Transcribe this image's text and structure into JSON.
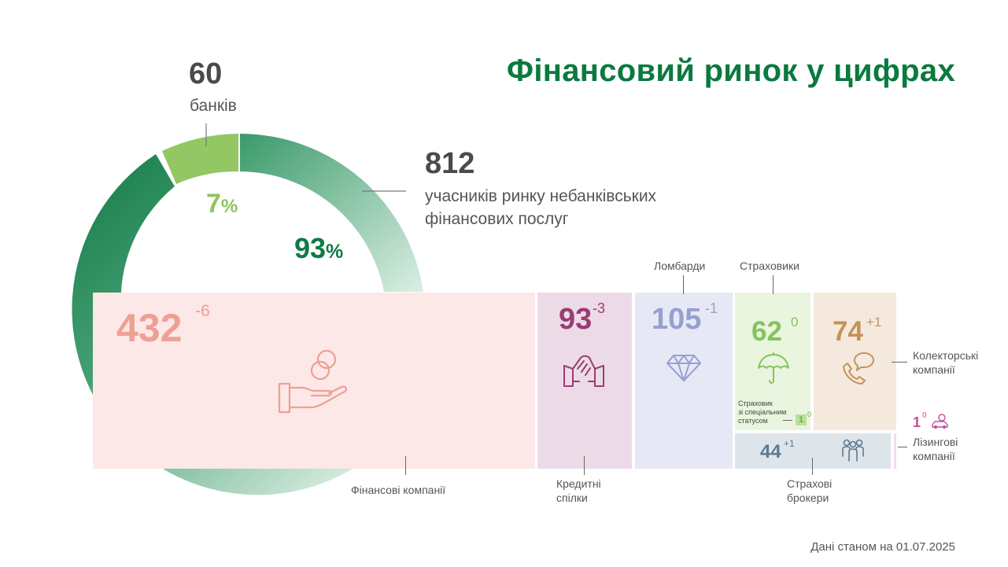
{
  "title": "Фінансовий ринок у цифрах",
  "banks": {
    "value": "60",
    "label": "банків",
    "share_pct": 7,
    "share_num": "7",
    "share_sym": "%"
  },
  "nonbank": {
    "value": "812",
    "label_line1": "учасників ринку небанківських",
    "label_line2": "фінансових послуг",
    "share_pct": 93,
    "share_num": "93",
    "share_sym": "%"
  },
  "colors": {
    "title": "#0a7a3f",
    "banks": "#92c764",
    "nonbank_dark": "#1a8150",
    "nonbank_light": "#dbeee2"
  },
  "tiles": {
    "finance": {
      "value": "432",
      "change": "-6",
      "label": "Фінансові компанії",
      "icon": "hand-coins-icon",
      "bg": "#fce8e6",
      "color": "#ef9f93"
    },
    "credit": {
      "value": "93",
      "change": "-3",
      "label_line1": "Кредитні",
      "label_line2": "спілки",
      "icon": "handshake-icon",
      "bg": "#ecdbe6",
      "color": "#9a3c74"
    },
    "pawn": {
      "value": "105",
      "change": "-1",
      "label": "Ломбарди",
      "icon": "diamond-icon",
      "bg": "#e6e9f5",
      "color": "#96a0d0"
    },
    "insurers": {
      "value": "62",
      "change": "0",
      "label": "Страховики",
      "icon": "umbrella-icon",
      "bg": "#e9f5df",
      "color": "#86c25e",
      "special_line1": "Страховик",
      "special_line2": "зі спеціальним",
      "special_line3": "статусом",
      "special_value": "1",
      "special_change": "0"
    },
    "collectors": {
      "value": "74",
      "change": "+1",
      "label_line1": "Колекторські",
      "label_line2": "компанії",
      "icon": "phone-chat-icon",
      "bg": "#f5e9de",
      "color": "#c49358"
    },
    "brokers": {
      "value": "44",
      "change": "+1",
      "label_line1": "Страхові",
      "label_line2": "брокери",
      "icon": "people-icon",
      "bg": "#dde4ea",
      "color": "#5c7a90"
    },
    "leasing": {
      "value": "1",
      "change": "0",
      "label_line1": "Лізингові",
      "label_line2": "компанії",
      "icon": "car-money-icon",
      "color": "#c44f9a"
    }
  },
  "footnote": "Дані станом на 01.07.2025"
}
